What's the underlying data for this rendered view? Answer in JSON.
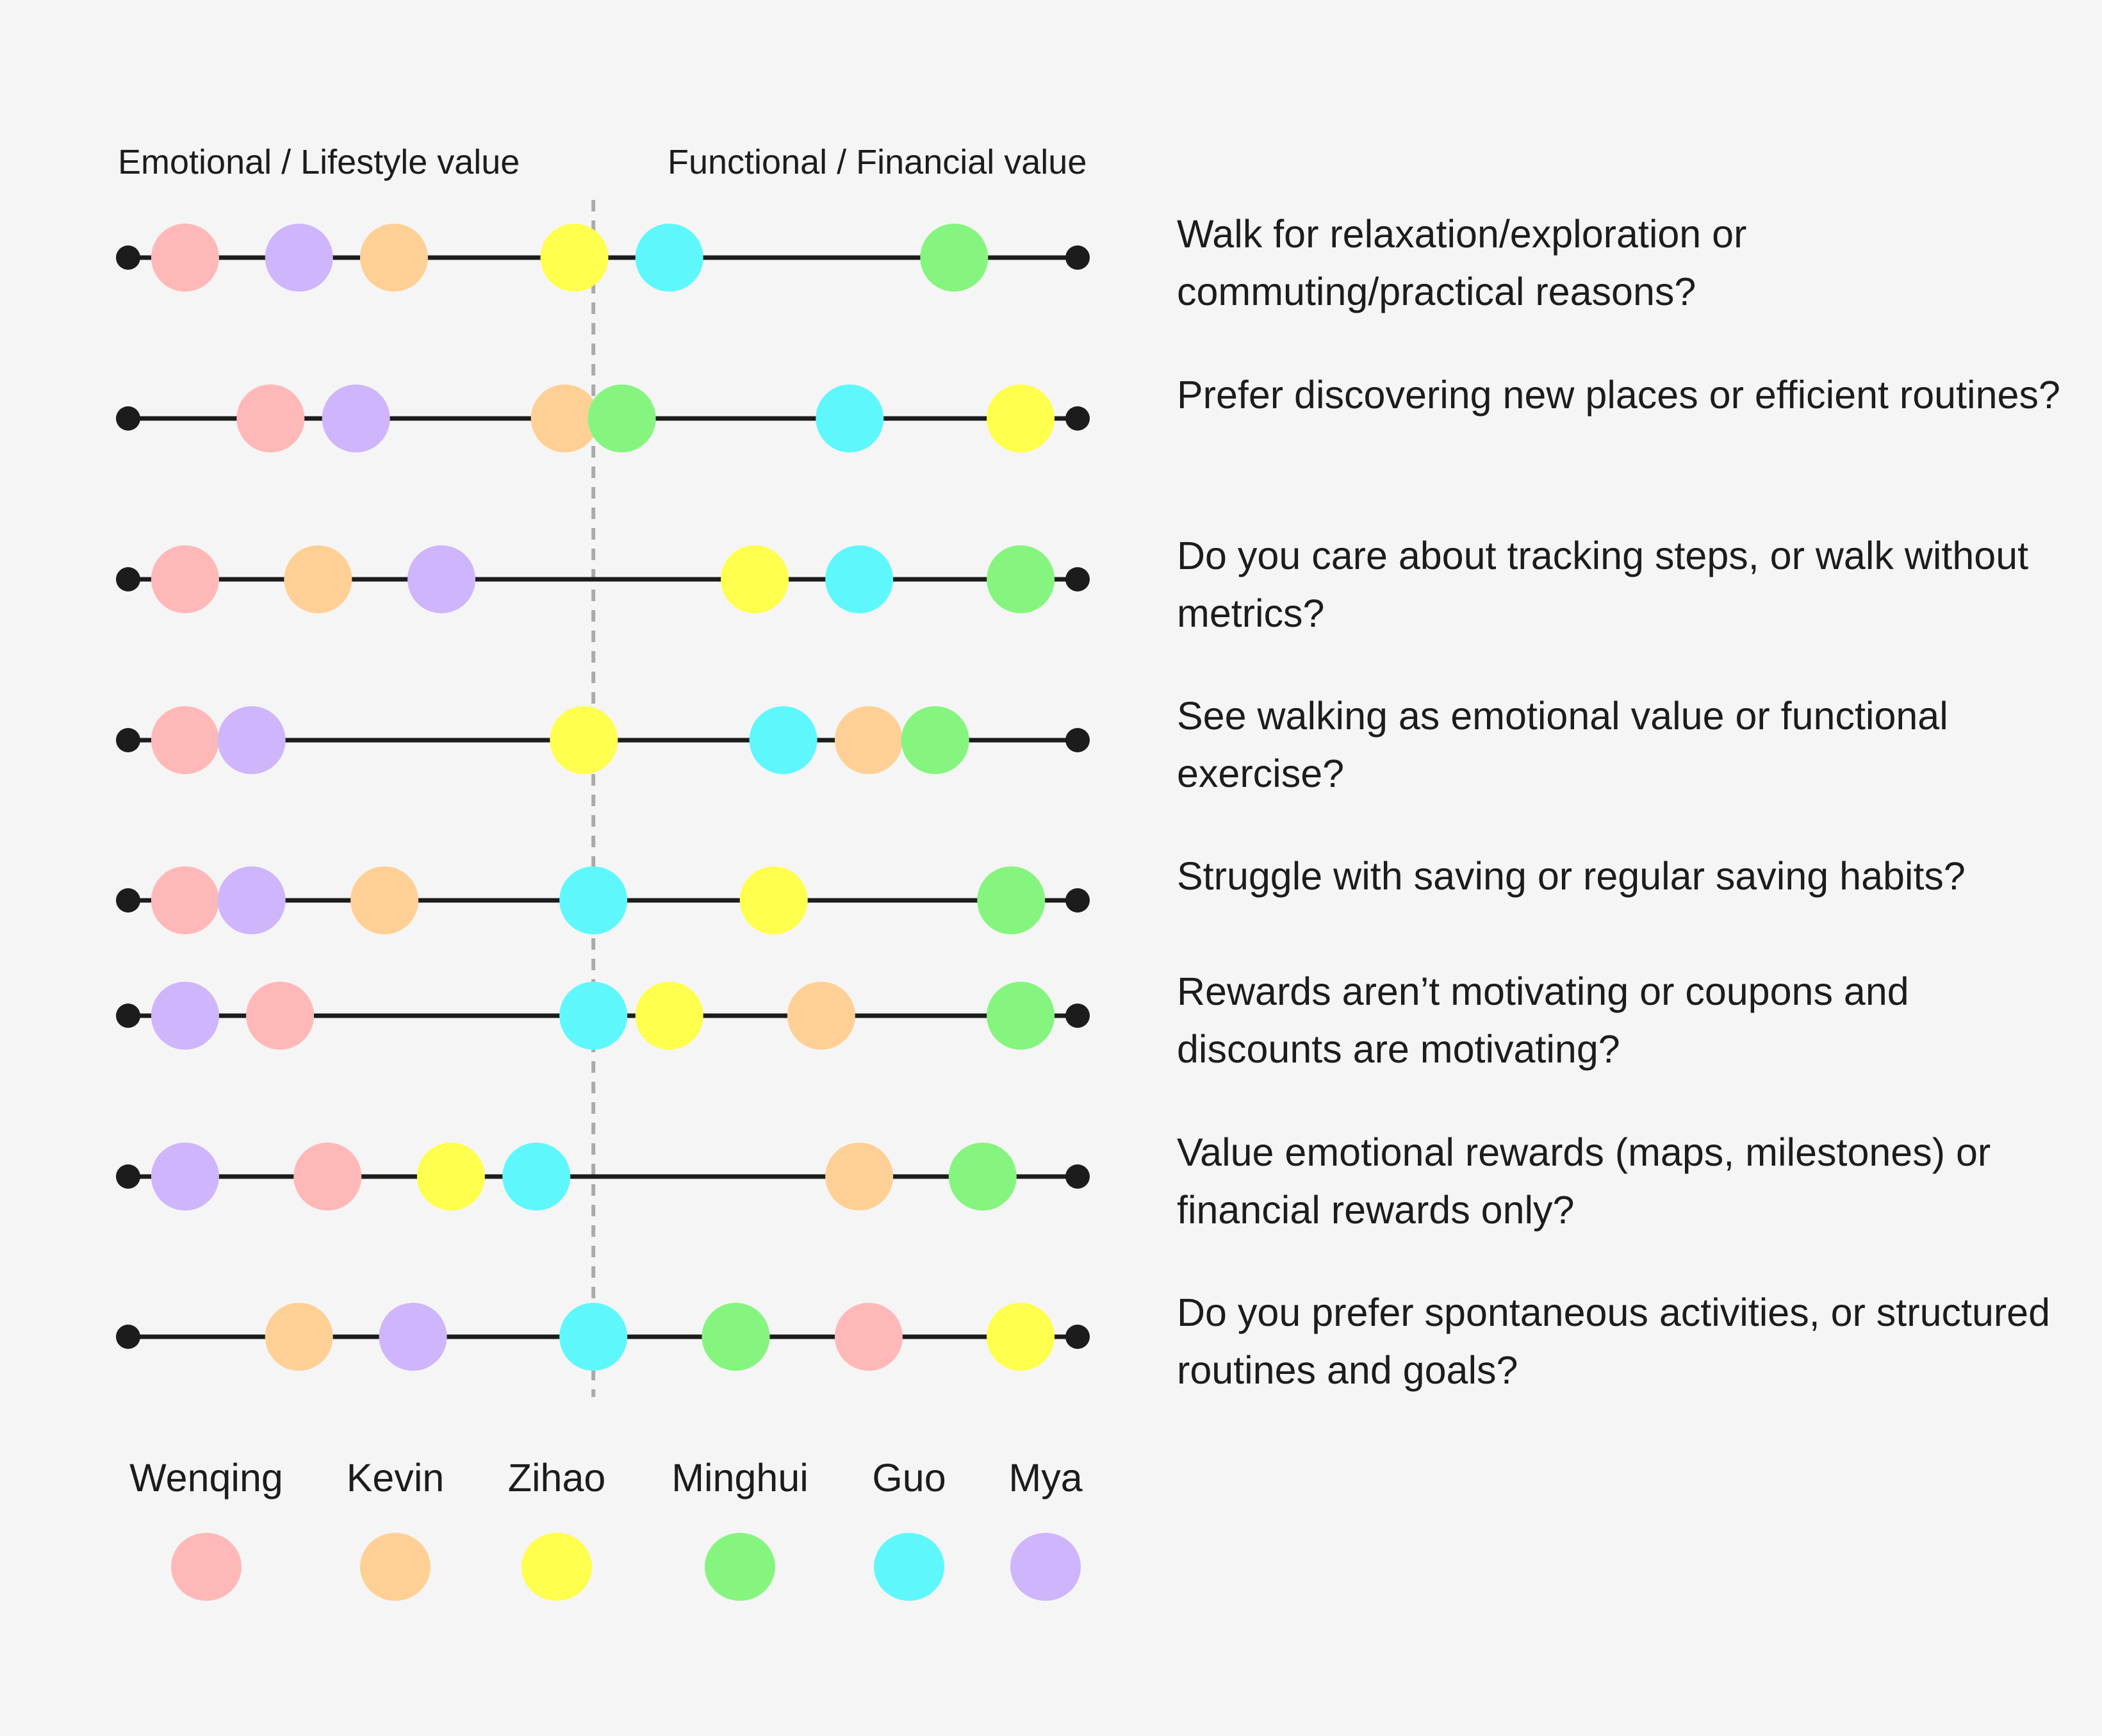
{
  "axis_labels": {
    "left": "Emotional / Lifestyle value",
    "right": "Functional / Financial value"
  },
  "colors": {
    "line": "#1c1c1c",
    "divider": "#aaaaaa",
    "background": "#f5f5f5"
  },
  "people": [
    {
      "id": "wenqing",
      "name": "Wenqing",
      "color": "#ffb8b8"
    },
    {
      "id": "kevin",
      "name": "Kevin",
      "color": "#ffd095"
    },
    {
      "id": "zihao",
      "name": "Zihao",
      "color": "#ffff4d"
    },
    {
      "id": "minghui",
      "name": "Minghui",
      "color": "#86f57f"
    },
    {
      "id": "guo",
      "name": "Guo",
      "color": "#5ef8fc"
    },
    {
      "id": "mya",
      "name": "Mya",
      "color": "#cfb5fb"
    }
  ],
  "scale_note": "positions are 0 (fully emotional/lifestyle) to 1 (fully functional/financial); midpoint divider at 0.49",
  "divider_position": 0.49,
  "rows": [
    {
      "question": "Walk for relaxation/exploration or commuting/practical reasons?",
      "positions": {
        "wenqing": 0.06,
        "mya": 0.18,
        "kevin": 0.28,
        "zihao": 0.47,
        "guo": 0.57,
        "minghui": 0.87
      }
    },
    {
      "question": "Prefer discovering new places or efficient routines?",
      "positions": {
        "wenqing": 0.15,
        "mya": 0.24,
        "kevin": 0.46,
        "minghui": 0.52,
        "guo": 0.76,
        "zihao": 0.94
      }
    },
    {
      "question": "Do you care about tracking steps, or walk without metrics?",
      "positions": {
        "wenqing": 0.06,
        "kevin": 0.2,
        "mya": 0.33,
        "zihao": 0.66,
        "guo": 0.77,
        "minghui": 0.94
      }
    },
    {
      "question": "See walking as emotional value or functional exercise?",
      "positions": {
        "wenqing": 0.06,
        "mya": 0.13,
        "zihao": 0.48,
        "guo": 0.69,
        "kevin": 0.78,
        "minghui": 0.85
      }
    },
    {
      "question": "Struggle with saving or regular saving habits?",
      "positions": {
        "wenqing": 0.06,
        "mya": 0.13,
        "kevin": 0.27,
        "guo": 0.49,
        "zihao": 0.68,
        "minghui": 0.93
      }
    },
    {
      "question": "Rewards aren’t motivating or coupons and discounts are motivating?",
      "positions": {
        "mya": 0.06,
        "wenqing": 0.16,
        "guo": 0.49,
        "zihao": 0.57,
        "kevin": 0.73,
        "minghui": 0.94
      }
    },
    {
      "question": "Value emotional rewards (maps, milestones) or financial rewards only?",
      "positions": {
        "mya": 0.06,
        "wenqing": 0.21,
        "zihao": 0.34,
        "guo": 0.43,
        "kevin": 0.77,
        "minghui": 0.9
      }
    },
    {
      "question": "Do you prefer spontaneous activities, or structured routines and goals?",
      "positions": {
        "kevin": 0.18,
        "mya": 0.3,
        "guo": 0.49,
        "minghui": 0.64,
        "wenqing": 0.78,
        "zihao": 0.94
      }
    }
  ]
}
